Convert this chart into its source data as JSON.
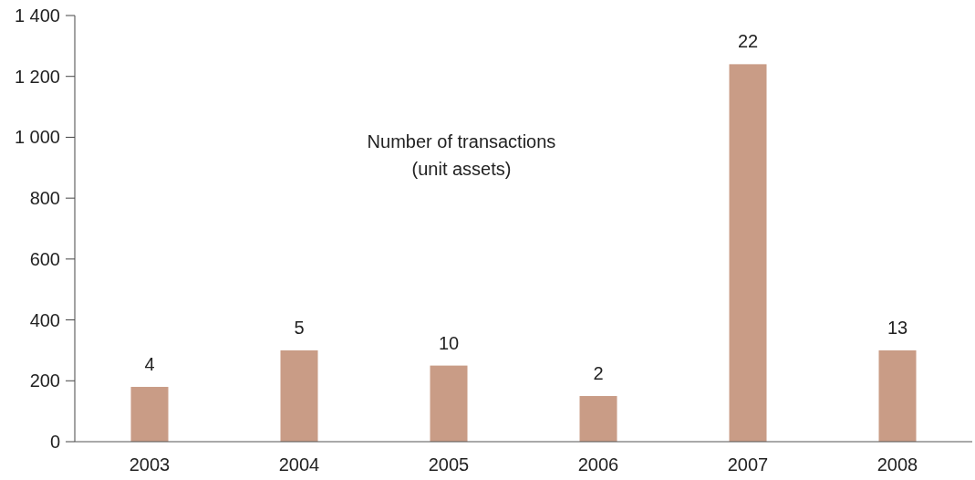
{
  "chart_data": {
    "type": "bar",
    "categories": [
      "2003",
      "2004",
      "2005",
      "2006",
      "2007",
      "2008"
    ],
    "values": [
      180,
      300,
      250,
      150,
      1240,
      300
    ],
    "color": "#c99c86",
    "ylim": [
      0,
      1400
    ],
    "yticks": [
      0,
      {
        "value": 200,
        "label": "200"
      },
      {
        "value": 400,
        "label": "400"
      },
      {
        "value": 600,
        "label": "600"
      },
      {
        "value": 800,
        "label": "800"
      },
      {
        "value": 1000,
        "label": "1 000"
      },
      {
        "value": 1200,
        "label": "1 200"
      },
      {
        "value": 1400,
        "label": "1 400"
      }
    ],
    "annotations": [
      "Number of transactions\n(unit assets)",
      {
        "text": "4",
        "x": "2003",
        "y": 180
      },
      {
        "text": "5",
        "x": "2004",
        "y": 300
      },
      {
        "text": "10",
        "x": "2005",
        "y": 250
      },
      {
        "text": "2",
        "x": "2006",
        "y": 150
      },
      {
        "text": "22",
        "x": "2007",
        "y": 1240
      },
      {
        "text": "13",
        "x": "2008",
        "y": 300
      }
    ],
    "grid": false
  }
}
